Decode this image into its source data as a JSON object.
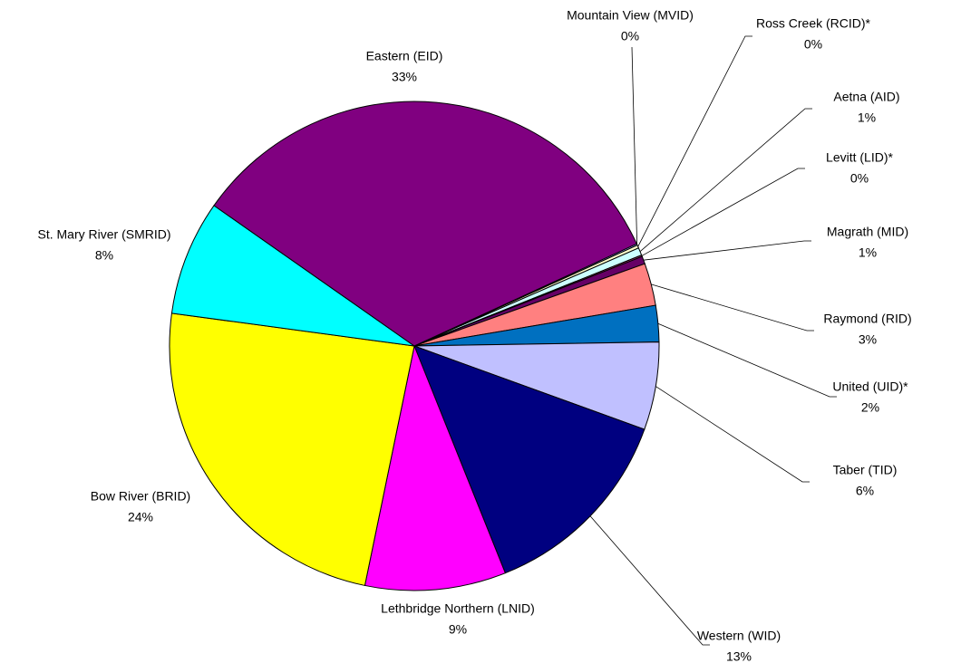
{
  "chart_data": {
    "type": "pie",
    "categories": [
      "Mountain View (MVID)",
      "Ross Creek (RCID)*",
      "Aetna (AID)",
      "Levitt (LID)*",
      "Magrath (MID)",
      "Raymond (RID)",
      "United (UID)*",
      "Taber (TID)",
      "Western (WID)",
      "Lethbridge Northern (LNID)",
      "Bow River (BRID)",
      "St. Mary River (SMRID)",
      "Eastern (EID)"
    ],
    "values": [
      0.1,
      0.2,
      0.5,
      0.1,
      0.5,
      2.8,
      2.4,
      5.8,
      13.4,
      9.3,
      23.9,
      7.6,
      33.4
    ],
    "value_labels": [
      "0%",
      "0%",
      "1%",
      "0%",
      "1%",
      "3%",
      "2%",
      "6%",
      "13%",
      "9%",
      "24%",
      "8%",
      "33%"
    ],
    "colors": [
      "#9999ff",
      "#ffffcc",
      "#ccffff",
      "#993366",
      "#660066",
      "#ff8080",
      "#0070c0",
      "#c0c0ff",
      "#000080",
      "#ff00ff",
      "#ffff00",
      "#00ffff",
      "#800080"
    ]
  }
}
